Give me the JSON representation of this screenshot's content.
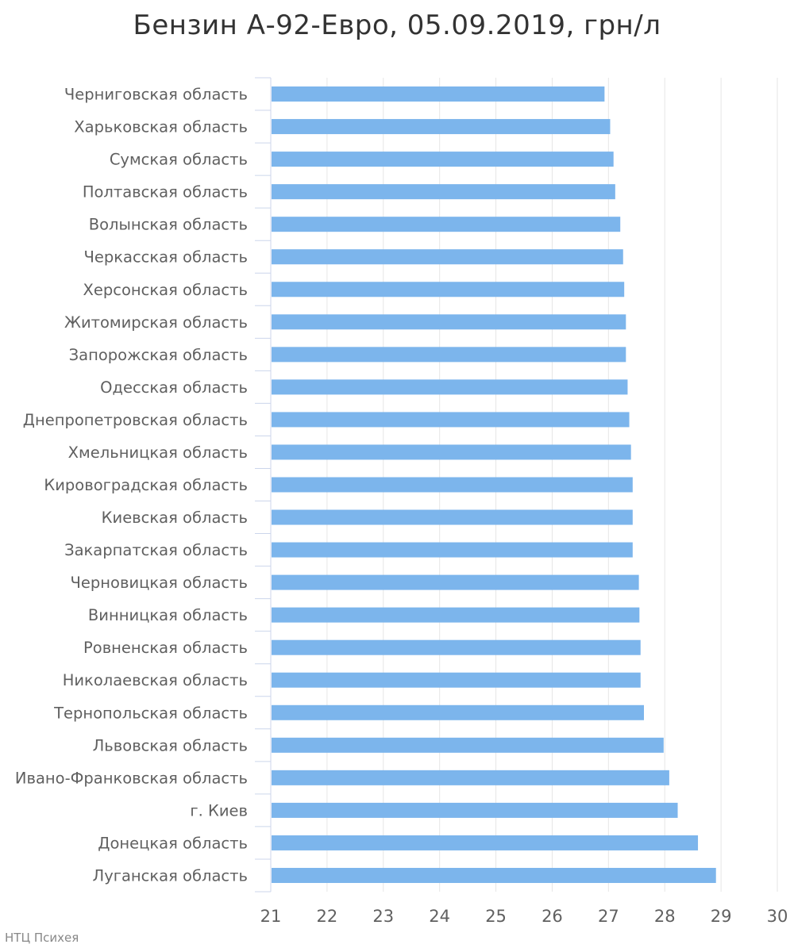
{
  "chart_data": {
    "type": "bar",
    "orientation": "horizontal",
    "title": "Бензин А-92-Евро, 05.09.2019, грн/л",
    "xlabel": "",
    "ylabel": "",
    "xlim": [
      21,
      30
    ],
    "ticks": [
      "21",
      "22",
      "23",
      "24",
      "25",
      "26",
      "27",
      "28",
      "29",
      "30"
    ],
    "grid": true,
    "bar_color": "#7cb5ec",
    "categories": [
      "Черниговская область",
      "Харьковская область",
      "Сумская область",
      "Полтавская область",
      "Волынская область",
      "Черкасская область",
      "Херсонская область",
      "Житомирская область",
      "Запорожская область",
      "Одесская область",
      "Днепропетровская область",
      "Хмельницкая область",
      "Кировоградская область",
      "Киевская область",
      "Закарпатская область",
      "Черновицкая область",
      "Винницкая область",
      "Ровненская область",
      "Николаевская область",
      "Тернопольская область",
      "Львовская область",
      "Ивано-Франковская область",
      "г. Киев",
      "Донецкая область",
      "Луганская область"
    ],
    "values": [
      26.93,
      27.03,
      27.09,
      27.12,
      27.21,
      27.26,
      27.28,
      27.31,
      27.31,
      27.34,
      27.37,
      27.4,
      27.43,
      27.43,
      27.43,
      27.54,
      27.55,
      27.57,
      27.57,
      27.63,
      27.98,
      28.08,
      28.23,
      28.59,
      28.91
    ]
  },
  "credits": "НТЦ Психея"
}
